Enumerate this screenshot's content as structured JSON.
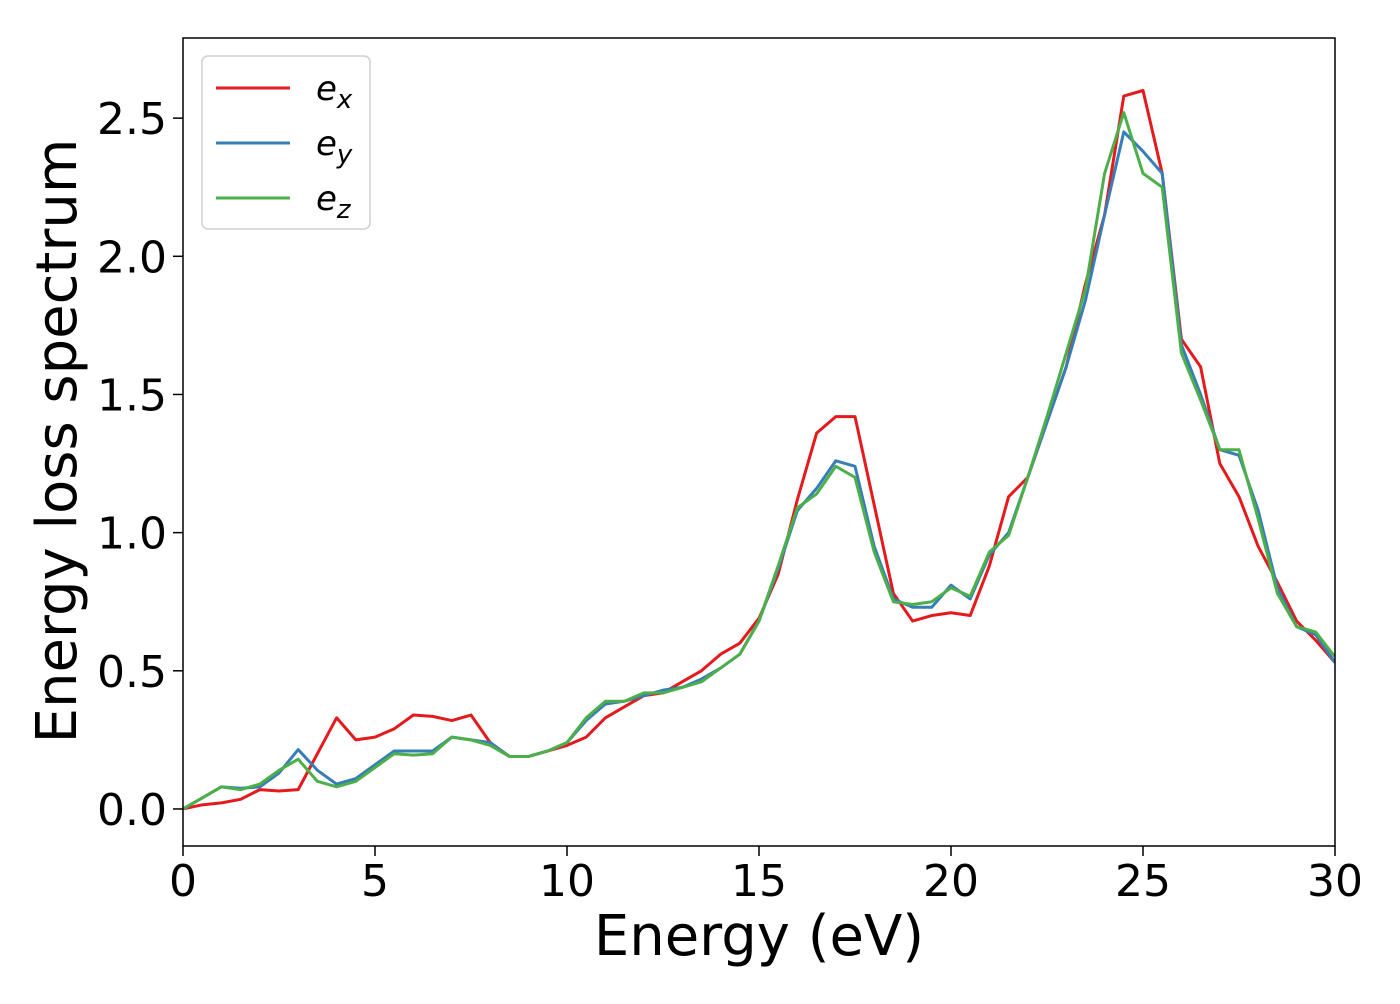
{
  "chart_data": {
    "type": "line",
    "xlabel": "Energy (eV)",
    "ylabel": "Energy loss spectrum",
    "x": [
      0,
      0.5,
      1,
      1.5,
      2,
      2.5,
      3,
      3.5,
      4,
      4.5,
      5,
      5.5,
      6,
      6.5,
      7,
      7.5,
      8,
      8.5,
      9,
      9.5,
      10,
      10.5,
      11,
      11.5,
      12,
      12.5,
      13,
      13.5,
      14,
      14.5,
      15,
      15.5,
      16,
      16.5,
      17,
      17.5,
      18,
      18.5,
      19,
      19.5,
      20,
      20.5,
      21,
      21.5,
      22,
      22.5,
      23,
      23.5,
      24,
      24.5,
      25,
      25.5,
      26,
      26.5,
      27,
      27.5,
      28,
      28.5,
      29,
      29.5,
      30
    ],
    "series": [
      {
        "name": "ex",
        "color": "#e41a1c",
        "values": [
          0,
          0.015,
          0.022,
          0.035,
          0.07,
          0.065,
          0.07,
          0.2,
          0.33,
          0.25,
          0.26,
          0.29,
          0.34,
          0.335,
          0.32,
          0.34,
          0.24,
          0.19,
          0.19,
          0.21,
          0.23,
          0.26,
          0.33,
          0.37,
          0.41,
          0.42,
          0.46,
          0.5,
          0.56,
          0.6,
          0.69,
          0.85,
          1.12,
          1.36,
          1.42,
          1.42,
          1.1,
          0.78,
          0.68,
          0.7,
          0.71,
          0.7,
          0.88,
          1.13,
          1.2,
          1.4,
          1.6,
          1.9,
          2.15,
          2.58,
          2.6,
          2.3,
          1.7,
          1.6,
          1.25,
          1.13,
          0.95,
          0.82,
          0.68,
          0.61,
          0.53
        ]
      },
      {
        "name": "ey",
        "color": "#377eb8",
        "values": [
          0,
          0.04,
          0.08,
          0.075,
          0.08,
          0.13,
          0.215,
          0.14,
          0.09,
          0.11,
          0.16,
          0.21,
          0.21,
          0.21,
          0.26,
          0.25,
          0.24,
          0.19,
          0.19,
          0.21,
          0.24,
          0.32,
          0.38,
          0.39,
          0.41,
          0.43,
          0.44,
          0.47,
          0.51,
          0.56,
          0.68,
          0.87,
          1.08,
          1.16,
          1.26,
          1.24,
          0.95,
          0.76,
          0.73,
          0.73,
          0.81,
          0.76,
          0.92,
          1.0,
          1.2,
          1.4,
          1.6,
          1.84,
          2.15,
          2.45,
          2.38,
          2.3,
          1.68,
          1.5,
          1.3,
          1.28,
          1.08,
          0.8,
          0.66,
          0.63,
          0.53
        ]
      },
      {
        "name": "ez",
        "color": "#4daf4a",
        "values": [
          0,
          0.04,
          0.08,
          0.07,
          0.09,
          0.14,
          0.18,
          0.1,
          0.08,
          0.1,
          0.15,
          0.2,
          0.195,
          0.2,
          0.26,
          0.25,
          0.23,
          0.19,
          0.19,
          0.21,
          0.24,
          0.33,
          0.39,
          0.39,
          0.42,
          0.42,
          0.44,
          0.46,
          0.51,
          0.56,
          0.68,
          0.88,
          1.09,
          1.14,
          1.24,
          1.2,
          0.93,
          0.75,
          0.74,
          0.75,
          0.8,
          0.77,
          0.93,
          0.99,
          1.2,
          1.42,
          1.65,
          1.88,
          2.3,
          2.52,
          2.3,
          2.25,
          1.65,
          1.48,
          1.3,
          1.3,
          1.05,
          0.78,
          0.66,
          0.64,
          0.55
        ]
      }
    ],
    "xlim": [
      0,
      30
    ],
    "xticks": [
      0,
      5,
      10,
      15,
      20,
      25,
      30
    ],
    "ylim": [
      -0.134,
      2.79
    ],
    "yticks": [
      {
        "value": 0,
        "label": "0.0"
      },
      0.5,
      {
        "value": 1,
        "label": "1.0"
      },
      1.5,
      {
        "value": 2,
        "label": "2.0"
      },
      2.5
    ],
    "legend": "upper left"
  }
}
